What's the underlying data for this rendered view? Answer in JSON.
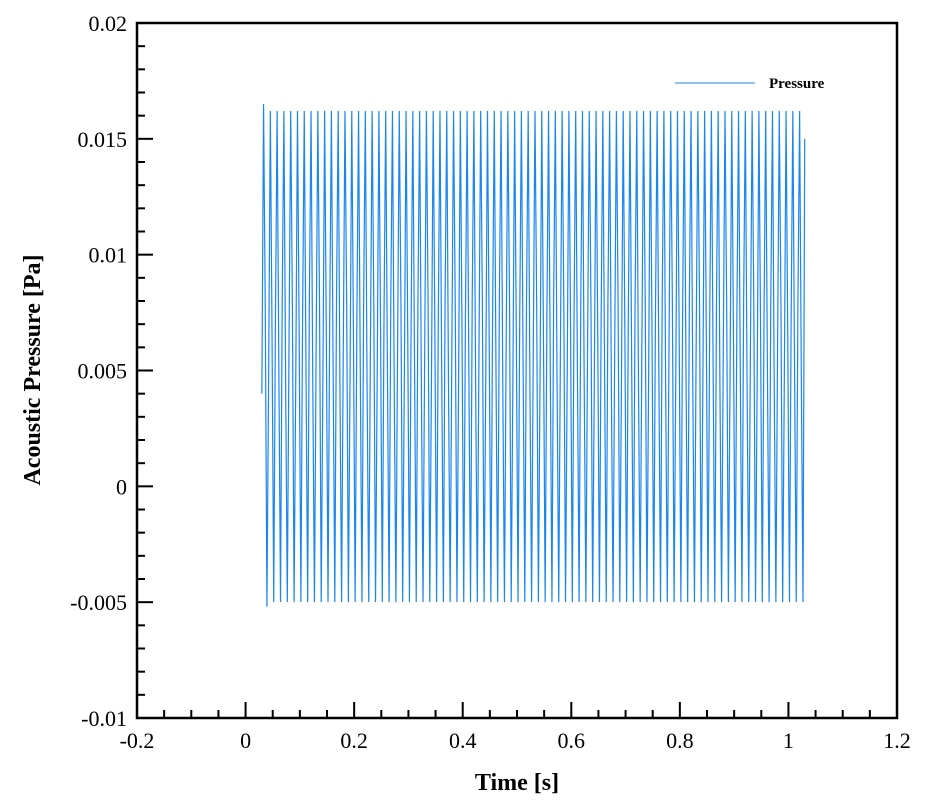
{
  "chart_data": {
    "type": "line",
    "title": "",
    "xlabel": "Time [s]",
    "ylabel": "Acoustic Pressure [Pa]",
    "xlim": [
      -0.2,
      1.2
    ],
    "ylim": [
      -0.01,
      0.02
    ],
    "x_ticks": [
      "-0.2",
      "0",
      "0.2",
      "0.4",
      "0.6",
      "0.8",
      "1",
      "1.2"
    ],
    "y_ticks": [
      "-0.01",
      "-0.005",
      "0",
      "0.005",
      "0.01",
      "0.015",
      "0.02"
    ],
    "grid": false,
    "legend": {
      "position": "top-right",
      "entries": [
        "Pressure"
      ]
    },
    "colors": {
      "series": "#1a86f0",
      "axes": "#000000"
    },
    "series": [
      {
        "name": "Pressure",
        "x_start": 0.03,
        "x_step": 0.003125,
        "y": [
          0.004,
          0.0165,
          0.0078,
          -0.0052,
          0.0048,
          0.0162,
          0.0065,
          -0.005,
          0.0072,
          0.0162,
          0.0052,
          -0.005,
          0.008,
          0.0162,
          0.0046,
          -0.005,
          0.006,
          0.0162,
          0.0078,
          -0.005,
          0.0048,
          0.0162,
          0.0065,
          -0.005,
          0.0072,
          0.0162,
          0.0052,
          -0.005,
          0.008,
          0.0162,
          0.0046,
          -0.005,
          0.006,
          0.0162,
          0.0078,
          -0.005,
          0.0048,
          0.0162,
          0.0065,
          -0.005,
          0.0072,
          0.0162,
          0.0052,
          -0.005,
          0.008,
          0.0162,
          0.0046,
          -0.005,
          0.006,
          0.0162,
          0.0078,
          -0.005,
          0.0048,
          0.0162,
          0.0065,
          -0.005,
          0.0072,
          0.0162,
          0.0052,
          -0.005,
          0.008,
          0.0162,
          0.0046,
          -0.005,
          0.006,
          0.0162,
          0.0078,
          -0.005,
          0.0048,
          0.0162,
          0.0065,
          -0.005,
          0.0072,
          0.0162,
          0.0052,
          -0.005,
          0.008,
          0.0162,
          0.0046,
          -0.005,
          0.006,
          0.0162,
          0.0078,
          -0.005,
          0.0048,
          0.0162,
          0.0065,
          -0.005,
          0.0072,
          0.0162,
          0.0052,
          -0.005,
          0.008,
          0.0162,
          0.0046,
          -0.005,
          0.006,
          0.0162,
          0.0078,
          -0.005,
          0.0048,
          0.0162,
          0.0065,
          -0.005,
          0.0072,
          0.0162,
          0.0052,
          -0.005,
          0.008,
          0.0162,
          0.0046,
          -0.005,
          0.006,
          0.0162,
          0.0078,
          -0.005,
          0.0048,
          0.0162,
          0.0065,
          -0.005,
          0.0072,
          0.0162,
          0.0052,
          -0.005,
          0.008,
          0.0162,
          0.0046,
          -0.005,
          0.006,
          0.0162,
          0.0078,
          -0.005,
          0.0048,
          0.0162,
          0.0065,
          -0.005,
          0.0072,
          0.0162,
          0.0052,
          -0.005,
          0.008,
          0.0162,
          0.0046,
          -0.005,
          0.006,
          0.0162,
          0.0078,
          -0.005,
          0.0048,
          0.0162,
          0.0065,
          -0.005,
          0.0072,
          0.0162,
          0.0052,
          -0.005,
          0.008,
          0.0162,
          0.0046,
          -0.005,
          0.006,
          0.0162,
          0.0078,
          -0.005,
          0.0048,
          0.0162,
          0.0065,
          -0.005,
          0.0072,
          0.0162,
          0.0052,
          -0.005,
          0.008,
          0.0162,
          0.0046,
          -0.005,
          0.006,
          0.0162,
          0.0078,
          -0.005,
          0.0048,
          0.0162,
          0.0065,
          -0.005,
          0.0072,
          0.0162,
          0.0052,
          -0.005,
          0.008,
          0.0162,
          0.0046,
          -0.005,
          0.006,
          0.0162,
          0.0078,
          -0.005,
          0.0048,
          0.0162,
          0.0065,
          -0.005,
          0.0072,
          0.0162,
          0.0052,
          -0.005,
          0.008,
          0.0162,
          0.0046,
          -0.005,
          0.006,
          0.0162,
          0.0078,
          -0.005,
          0.0048,
          0.0162,
          0.0065,
          -0.005,
          0.0072,
          0.0162,
          0.0052,
          -0.005,
          0.008,
          0.0162,
          0.0046,
          -0.005,
          0.006,
          0.0162,
          0.0078,
          -0.005,
          0.0048,
          0.0162,
          0.0065,
          -0.005,
          0.0072,
          0.0162,
          0.0052,
          -0.005,
          0.008,
          0.0162,
          0.0046,
          -0.005,
          0.006,
          0.0162,
          0.0078,
          -0.005,
          0.0048,
          0.0162,
          0.0065,
          -0.005,
          0.0072,
          0.0162,
          0.0052,
          -0.005,
          0.008,
          0.0162,
          0.0046,
          -0.005,
          0.006,
          0.0162,
          0.0078,
          -0.005,
          0.0048,
          0.0162,
          0.0065,
          -0.005,
          0.0072,
          0.0162,
          0.0052,
          -0.005,
          0.008,
          0.0162,
          0.0046,
          -0.005,
          0.006,
          0.0162,
          0.0078,
          -0.005,
          0.0048,
          0.0162,
          0.0065,
          -0.005,
          0.0072,
          0.0162,
          0.0052,
          -0.005,
          0.008,
          0.0162,
          0.0046,
          -0.005,
          0.006,
          0.0162,
          0.0078,
          -0.005,
          0.0048,
          0.0162,
          0.0065,
          -0.005,
          0.0072,
          0.0162,
          0.0052,
          -0.005,
          0.008,
          0.0162,
          0.0046,
          -0.005,
          0.006,
          0.0162,
          0.0078,
          -0.005,
          0.0048,
          0.0162,
          0.0065,
          -0.005,
          0.0072,
          0.0162,
          0.0052,
          -0.005,
          0.008,
          0.0162,
          0.0046,
          -0.005,
          0.015
        ]
      }
    ]
  }
}
